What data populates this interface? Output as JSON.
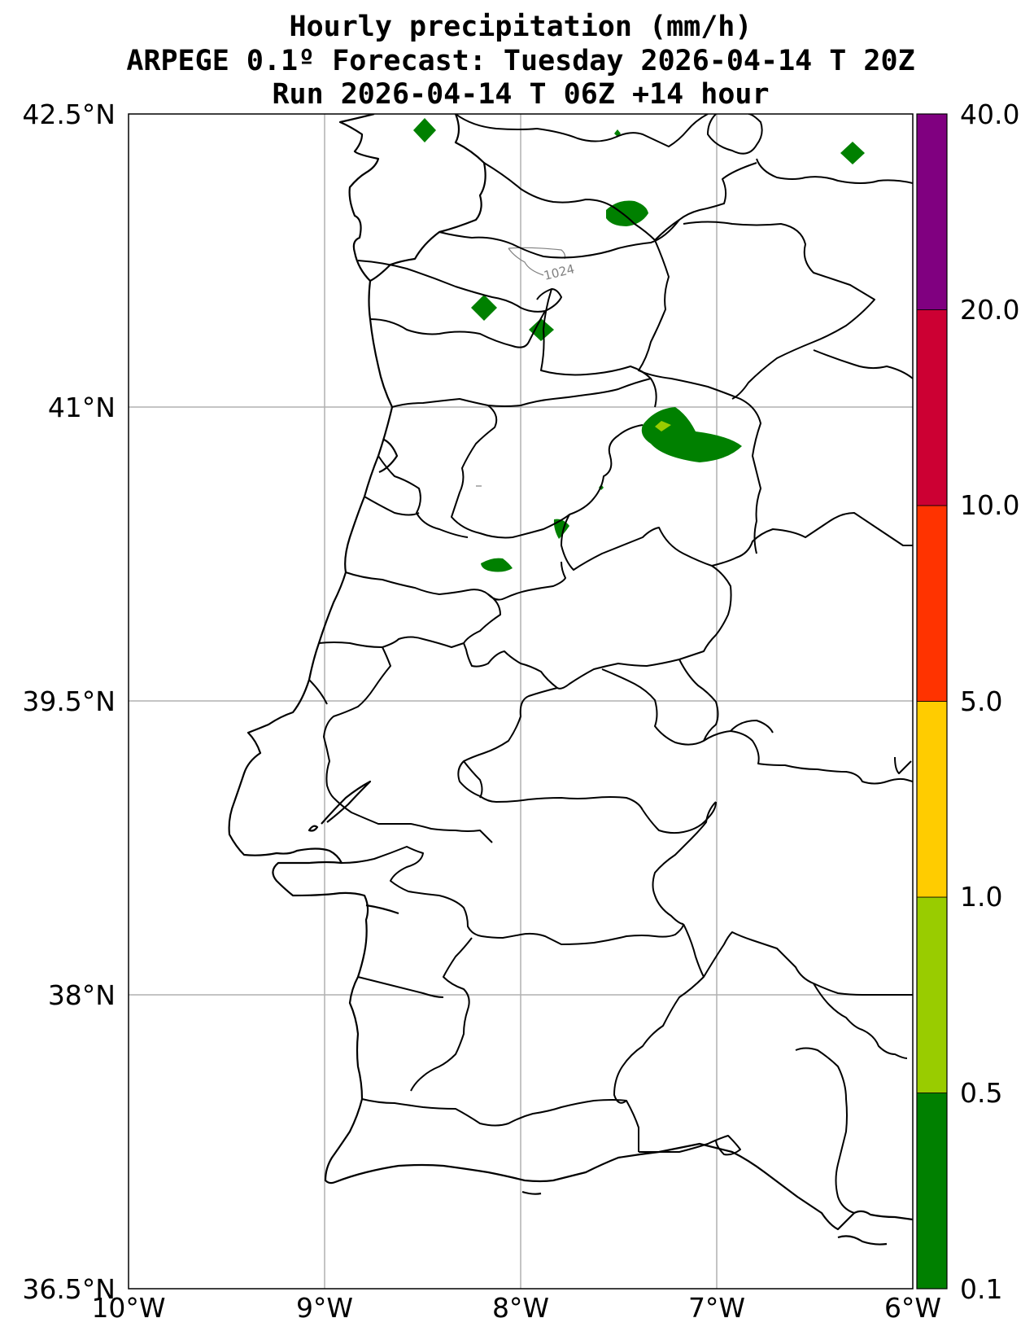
{
  "title": {
    "line1": "Hourly precipitation (mm/h)",
    "line2": "ARPEGE 0.1º Forecast: Tuesday 2026-04-14 T 20Z",
    "line3": "Run 2026-04-14 T 06Z +14 hour"
  },
  "map": {
    "lon_range": [
      -10,
      -6
    ],
    "lat_range": [
      36.5,
      42.5
    ],
    "lat_ticks": [
      "42.5°N",
      "41°N",
      "39.5°N",
      "38°N",
      "36.5°N"
    ],
    "lon_ticks": [
      "10°W",
      "9°W",
      "8°W",
      "7°W",
      "6°W"
    ],
    "grid": true,
    "isobar_label": "1024"
  },
  "colorbar": {
    "levels": [
      "0.1",
      "0.5",
      "1.0",
      "5.0",
      "10.0",
      "20.0",
      "40.0"
    ],
    "colors": [
      "#008000",
      "#99cc00",
      "#ffcc00",
      "#ff3300",
      "#cc0033",
      "#800080"
    ]
  },
  "precip_cells": [
    {
      "lon": -8.48,
      "lat": 42.43,
      "intensity": "0.1-0.5"
    },
    {
      "lon": -6.3,
      "lat": 42.37,
      "intensity": "0.1-0.5"
    },
    {
      "lon": -7.5,
      "lat": 42.12,
      "intensity": "0.1-0.5"
    },
    {
      "lon": -8.2,
      "lat": 41.57,
      "intensity": "0.1-0.5"
    },
    {
      "lon": -7.9,
      "lat": 41.46,
      "intensity": "0.1-0.5"
    },
    {
      "lon": -7.1,
      "lat": 40.93,
      "intensity": "0.1-0.5"
    },
    {
      "lon": -7.28,
      "lat": 40.98,
      "intensity": "0.5-1.0"
    },
    {
      "lon": -7.8,
      "lat": 40.56,
      "intensity": "0.1-0.5"
    },
    {
      "lon": -8.08,
      "lat": 40.36,
      "intensity": "0.1-0.5"
    }
  ]
}
